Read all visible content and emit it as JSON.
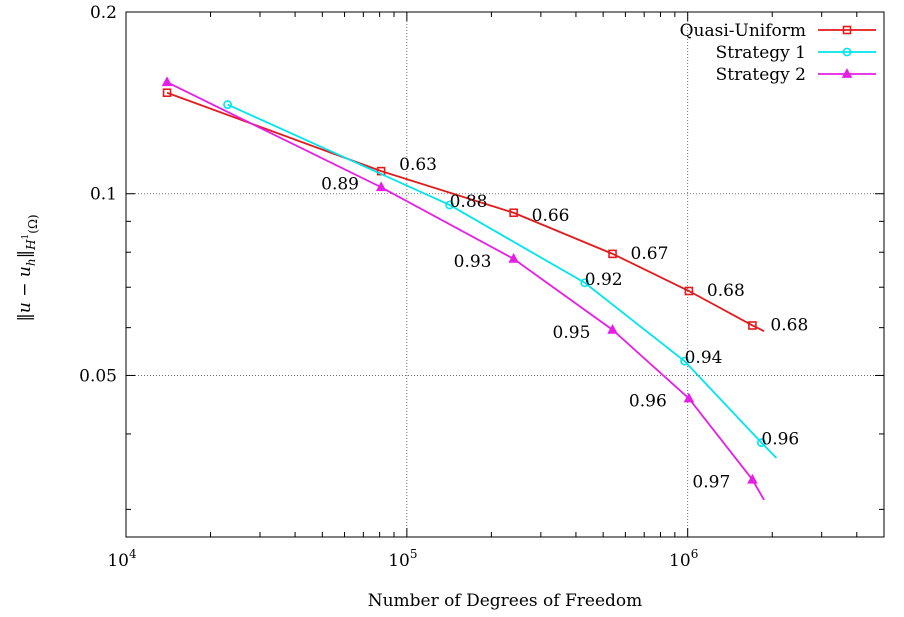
{
  "chart_data": {
    "type": "line",
    "x_scale": "log",
    "y_scale": "log",
    "xlabel": "Number of Degrees of Freedom",
    "ylabel": "||u − u_h||_{H^1(Ω)}",
    "xlim": [
      10000,
      5000000
    ],
    "ylim": [
      0.027,
      0.2
    ],
    "grid": true,
    "legend_position": "top-right",
    "x_ticks": [
      {
        "value": 10000,
        "base": "10",
        "exp": "4"
      },
      {
        "value": 100000,
        "base": "10",
        "exp": "5"
      },
      {
        "value": 1000000,
        "base": "10",
        "exp": "6"
      }
    ],
    "y_ticks": [
      {
        "value": 0.2,
        "label": "0.2"
      },
      {
        "value": 0.1,
        "label": "0.1"
      },
      {
        "value": 0.05,
        "label": "0.05"
      }
    ],
    "series": [
      {
        "name": "Quasi-Uniform",
        "color": "#e41a1c",
        "marker": "square",
        "points": [
          {
            "x": 14000,
            "y": 0.147
          },
          {
            "x": 81000,
            "y": 0.109
          },
          {
            "x": 240000,
            "y": 0.093
          },
          {
            "x": 540000,
            "y": 0.0795
          },
          {
            "x": 1010000,
            "y": 0.069
          },
          {
            "x": 1700000,
            "y": 0.0605
          }
        ],
        "line_end": {
          "x": 1870000,
          "y": 0.0592
        },
        "rates": [
          "0.63",
          "0.66",
          "0.67",
          "0.68",
          "0.68"
        ]
      },
      {
        "name": "Strategy 1",
        "color": "#00e5ee",
        "marker": "circle",
        "points": [
          {
            "x": 23000,
            "y": 0.1405
          },
          {
            "x": 142000,
            "y": 0.0958
          },
          {
            "x": 430000,
            "y": 0.0712
          },
          {
            "x": 975000,
            "y": 0.0528
          },
          {
            "x": 1830000,
            "y": 0.0387
          }
        ],
        "line_end": {
          "x": 2070000,
          "y": 0.0365
        },
        "rates": [
          "0.88",
          "0.92",
          "0.94",
          "0.96"
        ]
      },
      {
        "name": "Strategy 2",
        "color": "#e61ee6",
        "marker": "triangle",
        "points": [
          {
            "x": 14000,
            "y": 0.153
          },
          {
            "x": 81000,
            "y": 0.1025
          },
          {
            "x": 240000,
            "y": 0.078
          },
          {
            "x": 540000,
            "y": 0.0595
          },
          {
            "x": 1010000,
            "y": 0.0458
          },
          {
            "x": 1700000,
            "y": 0.0336
          }
        ],
        "line_end": {
          "x": 1870000,
          "y": 0.0311
        },
        "rates": [
          "0.89",
          "0.93",
          "0.95",
          "0.96",
          "0.97"
        ]
      }
    ]
  }
}
